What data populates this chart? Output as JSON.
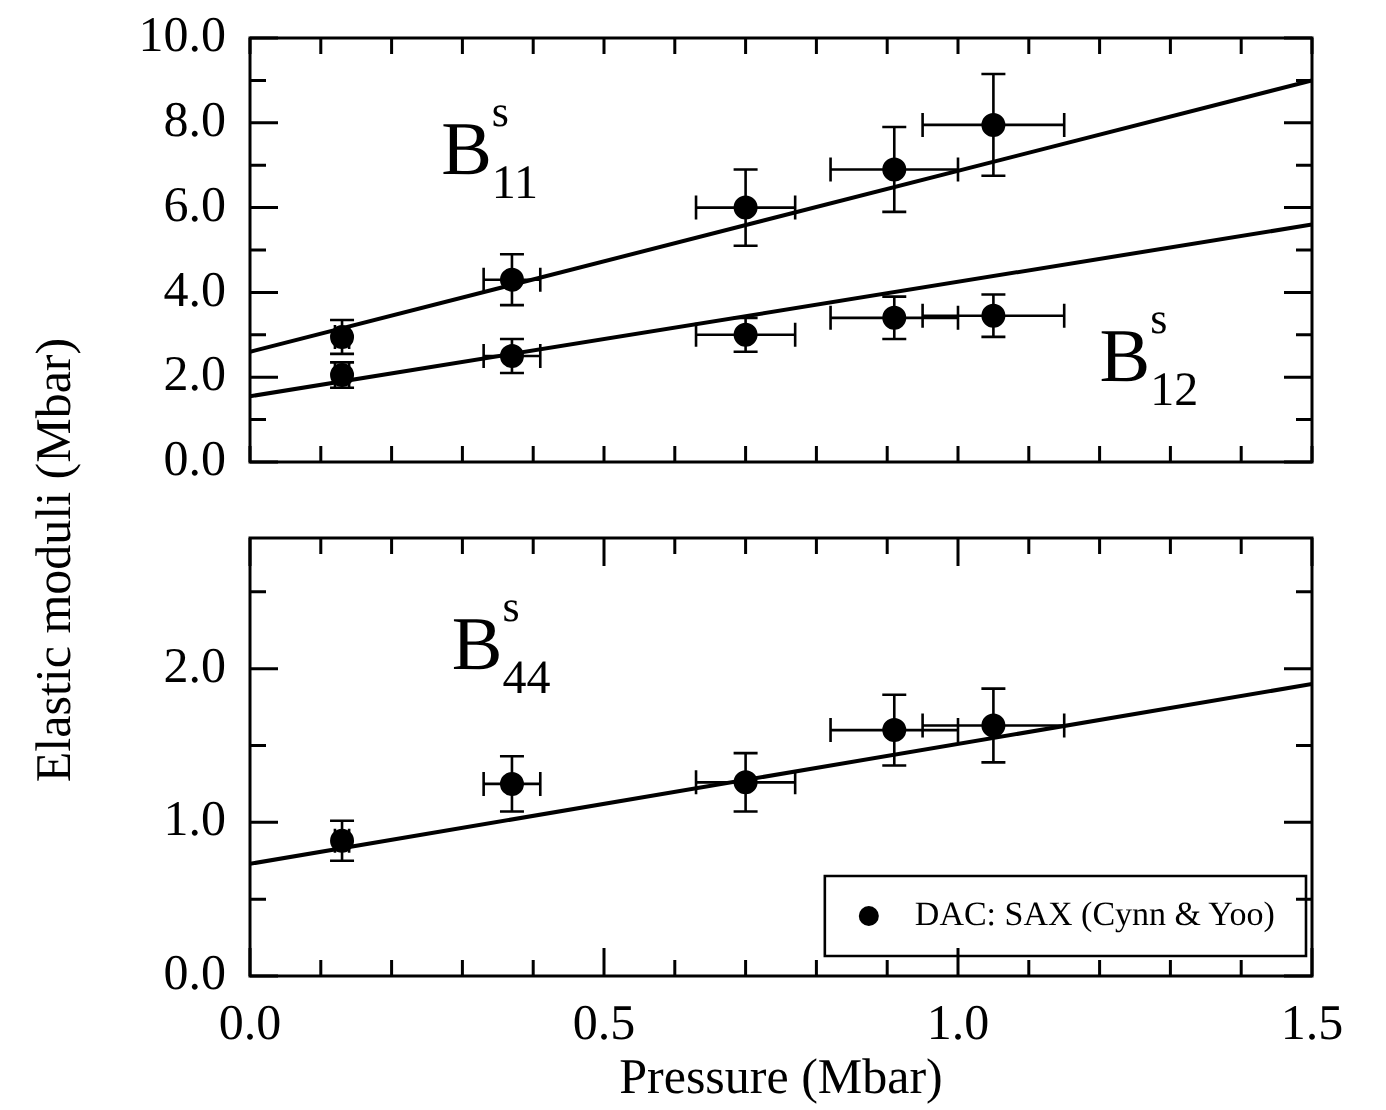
{
  "chart_data": [
    {
      "type": "scatter",
      "ylabel": "Elastic moduli (Mbar)",
      "tick_labels": "y",
      "grid": false,
      "legend": false,
      "xlim": [
        0,
        1.5
      ],
      "xticks": [
        {
          "value": 0,
          "label": null
        },
        {
          "value": 0.1,
          "label": null
        },
        {
          "value": 0.2,
          "label": null
        },
        {
          "value": 0.3,
          "label": null
        },
        {
          "value": 0.4,
          "label": null
        },
        {
          "value": 0.5,
          "label": null
        },
        {
          "value": 0.6,
          "label": null
        },
        {
          "value": 0.7,
          "label": null
        },
        {
          "value": 0.8,
          "label": null
        },
        {
          "value": 0.9,
          "label": null
        },
        {
          "value": 1.0,
          "label": null
        },
        {
          "value": 1.1,
          "label": null
        },
        {
          "value": 1.2,
          "label": null
        },
        {
          "value": 1.3,
          "label": null
        },
        {
          "value": 1.4,
          "label": null
        },
        {
          "value": 1.5,
          "label": null
        }
      ],
      "ylim": [
        0,
        10
      ],
      "yticks": [
        {
          "value": 0,
          "label": "0.0"
        },
        {
          "value": 1,
          "label": null
        },
        {
          "value": 2,
          "label": "2.0"
        },
        {
          "value": 3,
          "label": null
        },
        {
          "value": 4,
          "label": "4.0"
        },
        {
          "value": 5,
          "label": null
        },
        {
          "value": 6,
          "label": "6.0"
        },
        {
          "value": 7,
          "label": null
        },
        {
          "value": 8,
          "label": "8.0"
        },
        {
          "value": 9,
          "label": null
        },
        {
          "value": 10,
          "label": "10.0"
        }
      ],
      "series": [
        {
          "type": "scatter",
          "color": "#000000",
          "x": [
            0.13,
            0.37,
            0.7,
            0.91,
            1.05
          ],
          "values": [
            2.95,
            4.3,
            6.0,
            6.9,
            7.95
          ],
          "errors": [
            0.4,
            0.6,
            0.9,
            1.0,
            1.2
          ],
          "xerrors": [
            0.01,
            0.04,
            0.07,
            0.09,
            0.1
          ]
        },
        {
          "type": "scatter",
          "color": "#000000",
          "x": [
            0.13,
            0.37,
            0.7,
            0.91,
            1.05
          ],
          "values": [
            2.05,
            2.5,
            3.0,
            3.4,
            3.45
          ],
          "errors": [
            0.3,
            0.4,
            0.4,
            0.5,
            0.5
          ],
          "xerrors": [
            0.01,
            0.04,
            0.07,
            0.09,
            0.1
          ]
        },
        {
          "type": "line",
          "marker": "none",
          "color": "#000000",
          "x": [
            0,
            1.5
          ],
          "values": [
            2.6,
            9.0
          ]
        },
        {
          "type": "line",
          "marker": "none",
          "color": "#000000",
          "x": [
            0,
            1.5
          ],
          "values": [
            1.55,
            5.6
          ]
        }
      ],
      "annotations": [
        "B$^{s}$$_{11}$",
        "B$^{s}$$_{12}$"
      ]
    },
    {
      "type": "scatter",
      "xlabel": "Pressure (Mbar)",
      "grid": false,
      "legend": "bottom right",
      "xlim": [
        0,
        1.5
      ],
      "xticks": [
        {
          "value": 0,
          "label": "0.0"
        },
        {
          "value": 0.1,
          "label": null
        },
        {
          "value": 0.2,
          "label": null
        },
        {
          "value": 0.3,
          "label": null
        },
        {
          "value": 0.4,
          "label": null
        },
        {
          "value": 0.5,
          "label": "0.5"
        },
        {
          "value": 0.6,
          "label": null
        },
        {
          "value": 0.7,
          "label": null
        },
        {
          "value": 0.8,
          "label": null
        },
        {
          "value": 0.9,
          "label": null
        },
        {
          "value": 1.0,
          "label": "1.0"
        },
        {
          "value": 1.1,
          "label": null
        },
        {
          "value": 1.2,
          "label": null
        },
        {
          "value": 1.3,
          "label": null
        },
        {
          "value": 1.4,
          "label": null
        },
        {
          "value": 1.5,
          "label": "1.5"
        }
      ],
      "ylim": [
        0,
        2.85
      ],
      "yticks": [
        {
          "value": 0,
          "label": "0.0"
        },
        {
          "value": 0.5,
          "label": null
        },
        {
          "value": 1,
          "label": "1.0"
        },
        {
          "value": 1.5,
          "label": null
        },
        {
          "value": 2,
          "label": "2.0"
        },
        {
          "value": 2.5,
          "label": null
        }
      ],
      "series": [
        {
          "type": "scatter",
          "name": "DAC: SAX (Cynn & Yoo)",
          "color": "#000000",
          "x": [
            0.13,
            0.37,
            0.7,
            0.91,
            1.05
          ],
          "values": [
            0.88,
            1.25,
            1.26,
            1.6,
            1.63
          ],
          "errors": [
            0.13,
            0.18,
            0.19,
            0.23,
            0.24
          ],
          "xerrors": [
            0.01,
            0.04,
            0.07,
            0.09,
            0.1
          ]
        },
        {
          "type": "line",
          "marker": "none",
          "color": "#000000",
          "x": [
            0,
            1.5
          ],
          "values": [
            0.73,
            1.9
          ]
        }
      ],
      "annotations": [
        "B$^{s}$$_{44}$"
      ]
    }
  ]
}
